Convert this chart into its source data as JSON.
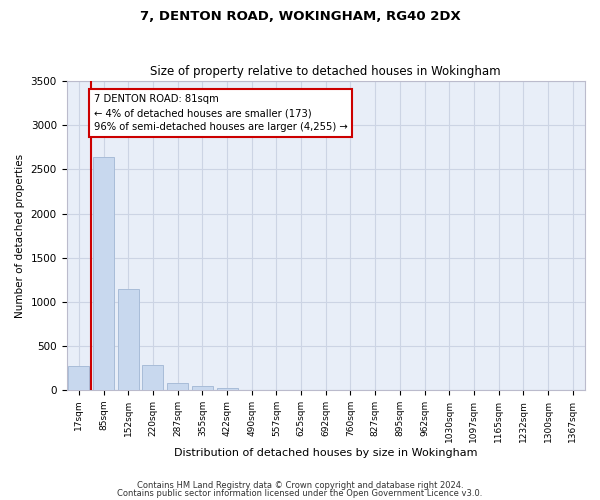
{
  "title1": "7, DENTON ROAD, WOKINGHAM, RG40 2DX",
  "title2": "Size of property relative to detached houses in Wokingham",
  "xlabel": "Distribution of detached houses by size in Wokingham",
  "ylabel": "Number of detached properties",
  "bar_labels": [
    "17sqm",
    "85sqm",
    "152sqm",
    "220sqm",
    "287sqm",
    "355sqm",
    "422sqm",
    "490sqm",
    "557sqm",
    "625sqm",
    "692sqm",
    "760sqm",
    "827sqm",
    "895sqm",
    "962sqm",
    "1030sqm",
    "1097sqm",
    "1165sqm",
    "1232sqm",
    "1300sqm",
    "1367sqm"
  ],
  "bar_values": [
    270,
    2640,
    1140,
    280,
    80,
    45,
    25,
    0,
    0,
    0,
    0,
    0,
    0,
    0,
    0,
    0,
    0,
    0,
    0,
    0,
    0
  ],
  "bar_color": "#c8d8ee",
  "bar_edge_color": "#a8bcd8",
  "grid_color": "#ccd4e4",
  "background_color": "#e8eef8",
  "vline_x": 0.5,
  "vline_color": "#cc0000",
  "annotation_text": "7 DENTON ROAD: 81sqm\n← 4% of detached houses are smaller (173)\n96% of semi-detached houses are larger (4,255) →",
  "annotation_box_color": "#ffffff",
  "annotation_box_edge": "#cc0000",
  "ylim": [
    0,
    3500
  ],
  "yticks": [
    0,
    500,
    1000,
    1500,
    2000,
    2500,
    3000,
    3500
  ],
  "footer1": "Contains HM Land Registry data © Crown copyright and database right 2024.",
  "footer2": "Contains public sector information licensed under the Open Government Licence v3.0."
}
